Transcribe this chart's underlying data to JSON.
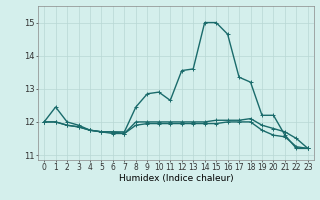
{
  "xlabel": "Humidex (Indice chaleur)",
  "ylabel": "",
  "xlim": [
    -0.5,
    23.5
  ],
  "ylim": [
    10.85,
    15.5
  ],
  "yticks": [
    11,
    12,
    13,
    14,
    15
  ],
  "xticks": [
    0,
    1,
    2,
    3,
    4,
    5,
    6,
    7,
    8,
    9,
    10,
    11,
    12,
    13,
    14,
    15,
    16,
    17,
    18,
    19,
    20,
    21,
    22,
    23
  ],
  "background_color": "#d4efec",
  "grid_color": "#b8d8d4",
  "line_color": "#1a6b6b",
  "series1": {
    "x": [
      0,
      1,
      2,
      3,
      4,
      5,
      6,
      7,
      8,
      9,
      10,
      11,
      12,
      13,
      14,
      15,
      16,
      17,
      18,
      19,
      20,
      21,
      22,
      23
    ],
    "y": [
      12.0,
      12.45,
      12.0,
      11.9,
      11.75,
      11.7,
      11.7,
      11.7,
      12.45,
      12.85,
      12.9,
      12.65,
      13.55,
      13.6,
      15.0,
      15.0,
      14.65,
      13.35,
      13.2,
      12.2,
      12.2,
      11.6,
      11.2,
      11.2
    ]
  },
  "series2": {
    "x": [
      0,
      1,
      2,
      3,
      4,
      5,
      6,
      7,
      8,
      9,
      10,
      11,
      12,
      13,
      14,
      15,
      16,
      17,
      18,
      19,
      20,
      21,
      22,
      23
    ],
    "y": [
      12.0,
      12.0,
      11.9,
      11.85,
      11.75,
      11.7,
      11.7,
      11.65,
      12.0,
      12.0,
      12.0,
      12.0,
      12.0,
      12.0,
      12.0,
      12.05,
      12.05,
      12.05,
      12.1,
      11.9,
      11.8,
      11.7,
      11.5,
      11.2
    ]
  },
  "series3": {
    "x": [
      0,
      1,
      2,
      3,
      4,
      5,
      6,
      7,
      8,
      9,
      10,
      11,
      12,
      13,
      14,
      15,
      16,
      17,
      18,
      19,
      20,
      21,
      22,
      23
    ],
    "y": [
      12.0,
      12.0,
      11.9,
      11.85,
      11.75,
      11.7,
      11.65,
      11.65,
      11.9,
      11.95,
      11.95,
      11.95,
      11.95,
      11.95,
      11.95,
      11.95,
      12.0,
      12.0,
      12.0,
      11.75,
      11.6,
      11.55,
      11.25,
      11.2
    ]
  },
  "marker_size": 2.5,
  "line_width": 1.0,
  "tick_fontsize": 5.5,
  "xlabel_fontsize": 6.5
}
